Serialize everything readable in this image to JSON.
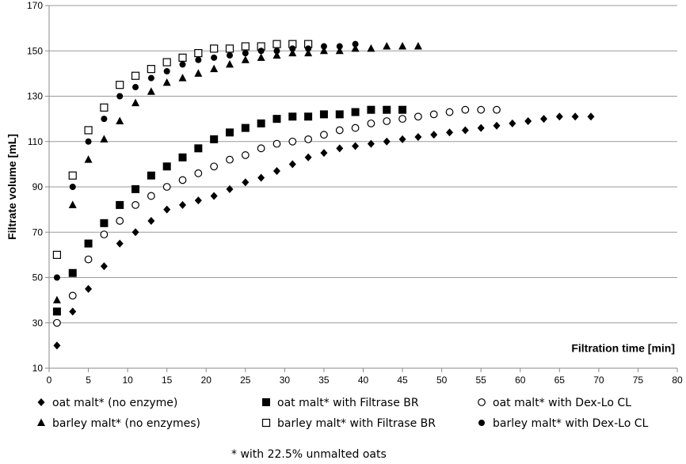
{
  "chart_data": {
    "type": "scatter",
    "xlabel": "Filtration time [min]",
    "ylabel": "Filtrate volume [mL]",
    "xlim": [
      0,
      80
    ],
    "ylim": [
      10,
      170
    ],
    "xticks": [
      0,
      5,
      10,
      15,
      20,
      25,
      30,
      35,
      40,
      45,
      50,
      55,
      60,
      65,
      70,
      75,
      80
    ],
    "yticks": [
      10,
      30,
      50,
      70,
      90,
      110,
      130,
      150,
      170
    ],
    "grid": "horizontal",
    "legend_position": "bottom",
    "footnote": "* with 22.5% unmalted oats",
    "series": [
      {
        "name": "oat malt* (no enzyme)",
        "marker": "diamond",
        "x": [
          1,
          3,
          5,
          7,
          9,
          11,
          13,
          15,
          17,
          19,
          21,
          23,
          25,
          27,
          29,
          31,
          33,
          35,
          37,
          39,
          41,
          43,
          45,
          47,
          49,
          51,
          53,
          55,
          57,
          59,
          61,
          63,
          65,
          67,
          69
        ],
        "y": [
          20,
          35,
          45,
          55,
          65,
          70,
          75,
          80,
          82,
          84,
          86,
          89,
          92,
          94,
          97,
          100,
          103,
          105,
          107,
          108,
          109,
          110,
          111,
          112,
          113,
          114,
          115,
          116,
          117,
          118,
          119,
          120,
          121,
          121,
          121
        ]
      },
      {
        "name": "oat malt* with Filtrase BR",
        "marker": "square",
        "x": [
          1,
          3,
          5,
          7,
          9,
          11,
          13,
          15,
          17,
          19,
          21,
          23,
          25,
          27,
          29,
          31,
          33,
          35,
          37,
          39,
          41,
          43,
          45
        ],
        "y": [
          35,
          52,
          65,
          74,
          82,
          89,
          95,
          99,
          103,
          107,
          111,
          114,
          116,
          118,
          120,
          121,
          121,
          122,
          122,
          123,
          124,
          124,
          124
        ]
      },
      {
        "name": "oat malt* with Dex-Lo CL",
        "marker": "circle-open",
        "x": [
          1,
          3,
          5,
          7,
          9,
          11,
          13,
          15,
          17,
          19,
          21,
          23,
          25,
          27,
          29,
          31,
          33,
          35,
          37,
          39,
          41,
          43,
          45,
          47,
          49,
          51,
          53,
          55,
          57
        ],
        "y": [
          30,
          42,
          58,
          69,
          75,
          82,
          86,
          90,
          93,
          96,
          99,
          102,
          104,
          107,
          109,
          110,
          111,
          113,
          115,
          116,
          118,
          119,
          120,
          121,
          122,
          123,
          124,
          124,
          124
        ]
      },
      {
        "name": "barley malt* (no enzymes)",
        "marker": "triangle",
        "x": [
          1,
          3,
          5,
          7,
          9,
          11,
          13,
          15,
          17,
          19,
          21,
          23,
          25,
          27,
          29,
          31,
          33,
          35,
          37,
          39,
          41,
          43,
          45,
          47
        ],
        "y": [
          40,
          82,
          102,
          111,
          119,
          127,
          132,
          136,
          138,
          140,
          142,
          144,
          146,
          147,
          148,
          149,
          149,
          150,
          150,
          151,
          151,
          152,
          152,
          152
        ]
      },
      {
        "name": "barley malt* with Filtrase BR",
        "marker": "square-open",
        "x": [
          1,
          3,
          5,
          7,
          9,
          11,
          13,
          15,
          17,
          19,
          21,
          23,
          25,
          27,
          29,
          31,
          33
        ],
        "y": [
          60,
          95,
          115,
          125,
          135,
          139,
          142,
          145,
          147,
          149,
          151,
          151,
          152,
          152,
          153,
          153,
          153
        ]
      },
      {
        "name": "barley malt* with Dex-Lo CL",
        "marker": "circle",
        "x": [
          1,
          3,
          5,
          7,
          9,
          11,
          13,
          15,
          17,
          19,
          21,
          23,
          25,
          27,
          29,
          31,
          33,
          35,
          37,
          39
        ],
        "y": [
          50,
          90,
          110,
          120,
          130,
          134,
          138,
          141,
          144,
          146,
          147,
          148,
          149,
          150,
          150,
          151,
          151,
          152,
          152,
          153
        ]
      }
    ]
  }
}
